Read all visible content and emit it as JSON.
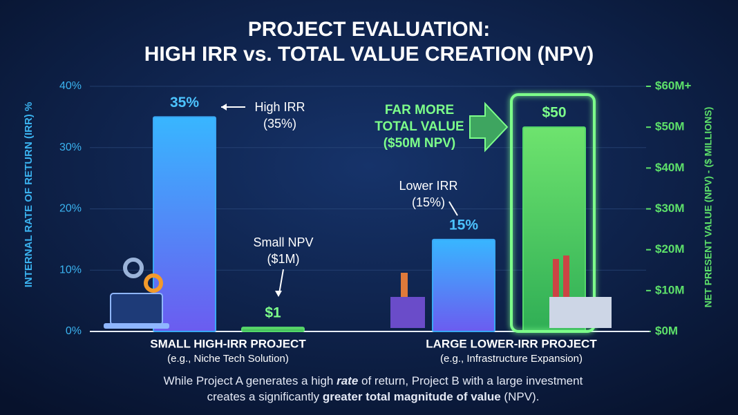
{
  "chart_data": {
    "type": "bar",
    "title": [
      "PROJECT EVALUATION:",
      "HIGH IRR vs. TOTAL VALUE CREATION (NPV)"
    ],
    "categories": [
      "SMALL HIGH-IRR PROJECT",
      "LARGE LOWER-IRR PROJECT"
    ],
    "category_notes": [
      "(e.g., Niche Tech Solution)",
      "(e.g., Infrastructure Expansion)"
    ],
    "series": [
      {
        "color": "#3aa8f5",
        "axis": "y",
        "values": [
          35,
          15
        ],
        "value_labels": [
          "35%",
          "15%"
        ]
      },
      {
        "color": "#55d96a",
        "axis": "y2",
        "values": [
          1,
          50
        ],
        "value_labels": [
          "$1",
          "$50"
        ]
      }
    ],
    "ylabel": "INTERNAL RATE OF RETURN (IRR) %",
    "y2label": "NET PRESENT VALUE (NPV) - ($ MILLIONS)",
    "ylim": [
      0,
      40
    ],
    "yticks": [
      {
        "value": 0,
        "label": "0%"
      },
      {
        "value": 10,
        "label": "10%"
      },
      {
        "value": 20,
        "label": "20%"
      },
      {
        "value": 30,
        "label": "30%"
      },
      {
        "value": 40,
        "label": "40%"
      }
    ],
    "y2lim": [
      0,
      60
    ],
    "y2ticks": [
      {
        "value": 0,
        "label": "$0M"
      },
      {
        "value": 10,
        "label": "$10M"
      },
      {
        "value": 20,
        "label": "$20M"
      },
      {
        "value": 30,
        "label": "$30M"
      },
      {
        "value": 40,
        "label": "$40M"
      },
      {
        "value": 50,
        "label": "$50M"
      },
      {
        "value": 60,
        "label": "$60M+"
      }
    ],
    "grid": true,
    "annotations": [
      [
        "High IRR",
        "(35%)"
      ],
      [
        "Small NPV",
        "($1M)"
      ],
      [
        "Lower IRR",
        "(15%)"
      ],
      [
        "FAR MORE",
        "TOTAL VALUE",
        "($50M NPV)"
      ]
    ],
    "caption": [
      [
        {
          "text": "While Project A generates a high "
        },
        {
          "text": "rate",
          "style": "bold-italic"
        },
        {
          "text": " of return, Project B with a large investment"
        }
      ],
      [
        {
          "text": "creates a significantly "
        },
        {
          "text": "greater total magnitude of value",
          "style": "bold"
        },
        {
          "text": " (NPV)."
        }
      ]
    ]
  }
}
